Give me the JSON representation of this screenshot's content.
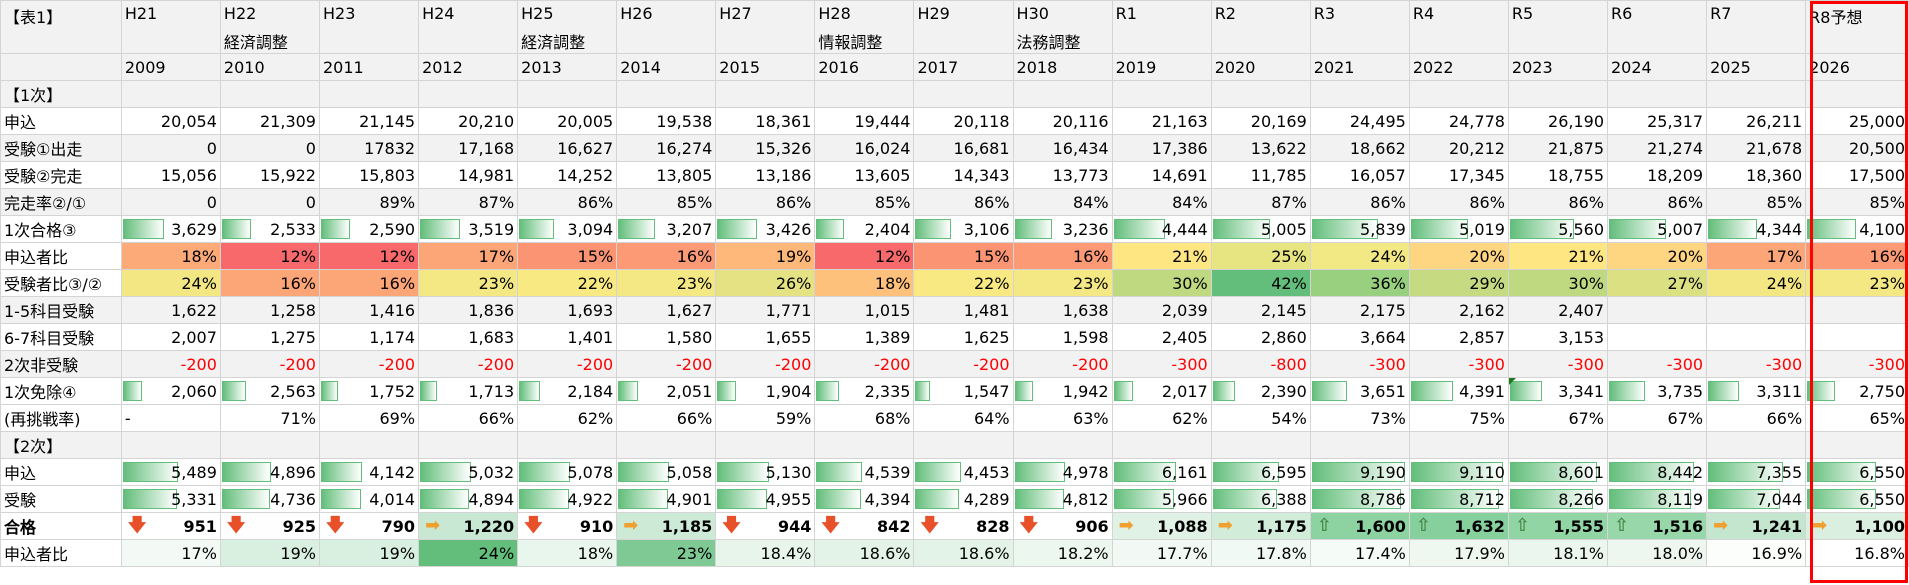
{
  "table_label": "【表1】",
  "columns": [
    {
      "era": "H21",
      "note": "",
      "year": "2009"
    },
    {
      "era": "H22",
      "note": "経済調整",
      "year": "2010"
    },
    {
      "era": "H23",
      "note": "",
      "year": "2011"
    },
    {
      "era": "H24",
      "note": "",
      "year": "2012"
    },
    {
      "era": "H25",
      "note": "経済調整",
      "year": "2013"
    },
    {
      "era": "H26",
      "note": "",
      "year": "2014"
    },
    {
      "era": "H27",
      "note": "",
      "year": "2015"
    },
    {
      "era": "H28",
      "note": "情報調整",
      "year": "2016"
    },
    {
      "era": "H29",
      "note": "",
      "year": "2017"
    },
    {
      "era": "H30",
      "note": "法務調整",
      "year": "2018"
    },
    {
      "era": "R1",
      "note": "",
      "year": "2019"
    },
    {
      "era": "R2",
      "note": "",
      "year": "2020"
    },
    {
      "era": "R3",
      "note": "",
      "year": "2021"
    },
    {
      "era": "R4",
      "note": "",
      "year": "2022"
    },
    {
      "era": "R5",
      "note": "",
      "year": "2023"
    },
    {
      "era": "R6",
      "note": "",
      "year": "2024"
    },
    {
      "era": "R7",
      "note": "",
      "year": "2025"
    },
    {
      "era": "R8予想",
      "note": "",
      "year": "2026"
    }
  ],
  "rows": [
    {
      "type": "section",
      "label": "【1次】"
    },
    {
      "type": "num",
      "label": "申込",
      "values": [
        "20,054",
        "21,309",
        "21,145",
        "20,210",
        "20,005",
        "19,538",
        "18,361",
        "19,444",
        "20,118",
        "20,116",
        "21,163",
        "20,169",
        "24,495",
        "24,778",
        "26,190",
        "25,317",
        "26,211",
        "25,000"
      ]
    },
    {
      "type": "num",
      "label": "受験①出走",
      "values": [
        "0",
        "0",
        "17832",
        "17,168",
        "16,627",
        "16,274",
        "15,326",
        "16,024",
        "16,681",
        "16,434",
        "17,386",
        "13,622",
        "18,662",
        "20,212",
        "21,875",
        "21,274",
        "21,678",
        "20,500"
      ]
    },
    {
      "type": "num",
      "label": "受験②完走",
      "values": [
        "15,056",
        "15,922",
        "15,803",
        "14,981",
        "14,252",
        "13,805",
        "13,186",
        "13,605",
        "14,343",
        "13,773",
        "14,691",
        "11,785",
        "16,057",
        "17,345",
        "18,755",
        "18,209",
        "18,360",
        "17,500"
      ]
    },
    {
      "type": "num",
      "label": "完走率②/①",
      "values": [
        "0",
        "0",
        "89%",
        "87%",
        "86%",
        "85%",
        "86%",
        "85%",
        "86%",
        "84%",
        "84%",
        "87%",
        "86%",
        "86%",
        "86%",
        "86%",
        "85%",
        "85%"
      ]
    },
    {
      "type": "bar",
      "label": "1次合格③",
      "values": [
        "3,629",
        "2,533",
        "2,590",
        "3,519",
        "3,094",
        "3,207",
        "3,426",
        "2,404",
        "3,106",
        "3,236",
        "4,444",
        "5,005",
        "5,839",
        "5,019",
        "5,560",
        "5,007",
        "4,344",
        "4,100"
      ],
      "fill": [
        0.42,
        0.3,
        0.3,
        0.41,
        0.36,
        0.37,
        0.4,
        0.28,
        0.36,
        0.38,
        0.52,
        0.58,
        0.68,
        0.58,
        0.65,
        0.58,
        0.5,
        0.48
      ]
    },
    {
      "type": "color",
      "label": "申込者比",
      "values": [
        "18%",
        "12%",
        "12%",
        "17%",
        "15%",
        "16%",
        "19%",
        "12%",
        "15%",
        "16%",
        "21%",
        "25%",
        "24%",
        "20%",
        "21%",
        "20%",
        "17%",
        "16%"
      ],
      "colors": [
        "#fcaa77",
        "#f8696b",
        "#f8696b",
        "#fca577",
        "#fa9473",
        "#fb9a75",
        "#feb879",
        "#f8696b",
        "#fa9473",
        "#fb9a75",
        "#fee783",
        "#e7e582",
        "#f2e884",
        "#fed580",
        "#fee783",
        "#fed580",
        "#fca577",
        "#fb9a75"
      ]
    },
    {
      "type": "color",
      "label": "受験者比③/②",
      "values": [
        "24%",
        "16%",
        "16%",
        "23%",
        "22%",
        "23%",
        "26%",
        "18%",
        "22%",
        "23%",
        "30%",
        "42%",
        "36%",
        "29%",
        "30%",
        "27%",
        "24%",
        "23%"
      ],
      "colors": [
        "#f3e783",
        "#fca577",
        "#fca577",
        "#f4e884",
        "#f8e983",
        "#f4e884",
        "#e4e283",
        "#fdc17c",
        "#f8e983",
        "#f4e884",
        "#bfd981",
        "#63be7b",
        "#99d07f",
        "#c6db81",
        "#bfd981",
        "#dbe182",
        "#f3e783",
        "#f4e884"
      ]
    },
    {
      "type": "num",
      "label": "1-5科目受験",
      "values": [
        "1,622",
        "1,258",
        "1,416",
        "1,836",
        "1,693",
        "1,627",
        "1,771",
        "1,015",
        "1,481",
        "1,638",
        "2,039",
        "2,145",
        "2,175",
        "2,162",
        "2,407",
        "",
        "",
        ""
      ]
    },
    {
      "type": "num",
      "label": "6-7科目受験",
      "values": [
        "2,007",
        "1,275",
        "1,174",
        "1,683",
        "1,401",
        "1,580",
        "1,655",
        "1,389",
        "1,625",
        "1,598",
        "2,405",
        "2,860",
        "3,664",
        "2,857",
        "3,153",
        "",
        "",
        ""
      ]
    },
    {
      "type": "red",
      "label": "2次非受験",
      "values": [
        "-200",
        "-200",
        "-200",
        "-200",
        "-200",
        "-200",
        "-200",
        "-200",
        "-200",
        "-200",
        "-300",
        "-800",
        "-300",
        "-300",
        "-300",
        "-300",
        "-300",
        "-300"
      ]
    },
    {
      "type": "bar",
      "label": "1次免除④",
      "values": [
        "2,060",
        "2,563",
        "1,752",
        "1,713",
        "2,184",
        "2,051",
        "1,904",
        "2,335",
        "1,547",
        "1,942",
        "2,017",
        "2,390",
        "3,651",
        "4,391",
        "3,341",
        "3,735",
        "3,311",
        "2,750"
      ],
      "fill": [
        0.2,
        0.25,
        0.17,
        0.17,
        0.21,
        0.2,
        0.19,
        0.23,
        0.15,
        0.19,
        0.2,
        0.23,
        0.36,
        0.43,
        0.33,
        0.37,
        0.32,
        0.27
      ]
    },
    {
      "type": "num",
      "label": "(再挑戦率)",
      "values": [
        "-",
        "71%",
        "69%",
        "66%",
        "62%",
        "66%",
        "59%",
        "68%",
        "64%",
        "63%",
        "62%",
        "54%",
        "73%",
        "75%",
        "67%",
        "67%",
        "66%",
        "65%"
      ]
    },
    {
      "type": "section",
      "label": "【2次】"
    },
    {
      "type": "bar",
      "label": "申込",
      "values": [
        "5,489",
        "4,896",
        "4,142",
        "5,032",
        "5,078",
        "5,058",
        "5,130",
        "4,539",
        "4,453",
        "4,978",
        "6,161",
        "6,595",
        "9,190",
        "9,110",
        "8,601",
        "8,442",
        "7,355",
        "6,550"
      ],
      "fill": [
        0.56,
        0.5,
        0.42,
        0.52,
        0.52,
        0.52,
        0.53,
        0.47,
        0.46,
        0.51,
        0.64,
        0.68,
        0.95,
        0.94,
        0.89,
        0.87,
        0.76,
        0.68
      ]
    },
    {
      "type": "bar",
      "label": "受験",
      "values": [
        "5,331",
        "4,736",
        "4,014",
        "4,894",
        "4,922",
        "4,901",
        "4,955",
        "4,394",
        "4,289",
        "4,812",
        "5,966",
        "6,388",
        "8,786",
        "8,712",
        "8,266",
        "8,119",
        "7,044",
        "6,550"
      ],
      "fill": [
        0.55,
        0.49,
        0.41,
        0.5,
        0.51,
        0.51,
        0.51,
        0.45,
        0.44,
        0.5,
        0.62,
        0.66,
        0.91,
        0.9,
        0.85,
        0.84,
        0.73,
        0.68
      ]
    },
    {
      "type": "total",
      "label": "合格",
      "values": [
        "951",
        "925",
        "790",
        "1,220",
        "910",
        "1,185",
        "944",
        "842",
        "828",
        "906",
        "1,088",
        "1,175",
        "1,600",
        "1,632",
        "1,555",
        "1,516",
        "1,241",
        "1,100"
      ],
      "arrows": [
        "down",
        "down",
        "down",
        "right",
        "down",
        "right",
        "down",
        "down",
        "down",
        "down",
        "right",
        "right",
        "up",
        "up",
        "up",
        "up",
        "right",
        "right"
      ],
      "colors": [
        "#ffffff",
        "#fdfefd",
        "#ffffff",
        "#c9e8d3",
        "#ffffff",
        "#cdead6",
        "#ffffff",
        "#ffffff",
        "#ffffff",
        "#ffffff",
        "#e0f1e5",
        "#d1ecd9",
        "#8dd3a2",
        "#85d09c",
        "#91d5a5",
        "#97d7aa",
        "#c4e6cf",
        "#dbefe1"
      ]
    },
    {
      "type": "color",
      "label": "申込者比",
      "values": [
        "17%",
        "19%",
        "19%",
        "24%",
        "18%",
        "23%",
        "18.4%",
        "18.6%",
        "18.6%",
        "18.2%",
        "17.7%",
        "17.8%",
        "17.4%",
        "17.9%",
        "18.1%",
        "18.0%",
        "16.9%",
        "16.8%"
      ],
      "colors": [
        "#f3faf5",
        "#d9efe0",
        "#d9efe0",
        "#63be7b",
        "#e9f6ed",
        "#7fca94",
        "#e7f5eb",
        "#e3f3e8",
        "#e3f3e8",
        "#ecf7ef",
        "#f2f9f4",
        "#f0f9f3",
        "#f5fbf7",
        "#eef8f1",
        "#ebf6ee",
        "#edf7f0",
        "#fcfefc",
        "#ffffff"
      ]
    }
  ]
}
